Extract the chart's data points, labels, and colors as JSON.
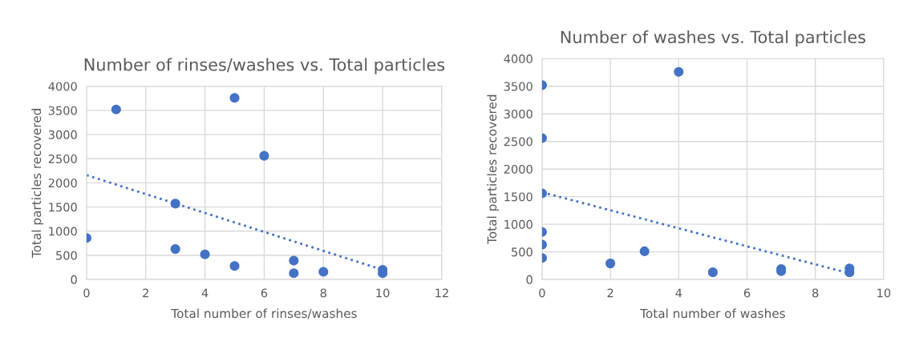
{
  "chart_data": [
    {
      "type": "scatter",
      "title": "Number of rinses/washes vs. Total particles",
      "xlabel": "Total number of rinses/washes",
      "ylabel": "Total particles recovered",
      "xlim": [
        0,
        12
      ],
      "xticks": [
        0,
        2,
        4,
        6,
        8,
        10,
        12
      ],
      "ylim": [
        0,
        4000
      ],
      "yticks": [
        0,
        500,
        1000,
        1500,
        2000,
        2500,
        3000,
        3500,
        4000
      ],
      "grid": true,
      "series": [
        {
          "marker": "circle",
          "color": "#4472c4",
          "x": [
            0,
            1,
            3,
            3,
            4,
            5,
            5,
            6,
            7,
            7,
            8,
            10,
            10
          ],
          "values": [
            860,
            3520,
            1570,
            630,
            520,
            3760,
            280,
            2560,
            390,
            130,
            160,
            200,
            130
          ]
        },
        {
          "type": "line",
          "color": "#4472c4",
          "line_style": "dotted",
          "x": [
            0,
            10
          ],
          "values": [
            2160,
            200
          ]
        }
      ]
    },
    {
      "type": "scatter",
      "title": "Number of washes vs. Total particles",
      "xlabel": "Total number of washes",
      "ylabel": "Total particles recovered",
      "xlim": [
        0,
        10
      ],
      "xticks": [
        0,
        2,
        4,
        6,
        8,
        10
      ],
      "ylim": [
        0,
        4000
      ],
      "yticks": [
        0,
        500,
        1000,
        1500,
        2000,
        2500,
        3000,
        3500,
        4000
      ],
      "grid": true,
      "series": [
        {
          "marker": "circle",
          "color": "#4472c4",
          "x": [
            0,
            0,
            0,
            0,
            0,
            0,
            2,
            3,
            4,
            5,
            7,
            7,
            9,
            9
          ],
          "values": [
            3520,
            2560,
            1560,
            860,
            630,
            390,
            290,
            510,
            3760,
            130,
            190,
            150,
            200,
            130
          ]
        },
        {
          "type": "line",
          "color": "#4472c4",
          "line_style": "dotted",
          "x": [
            0,
            9
          ],
          "values": [
            1580,
            110
          ]
        }
      ]
    }
  ]
}
